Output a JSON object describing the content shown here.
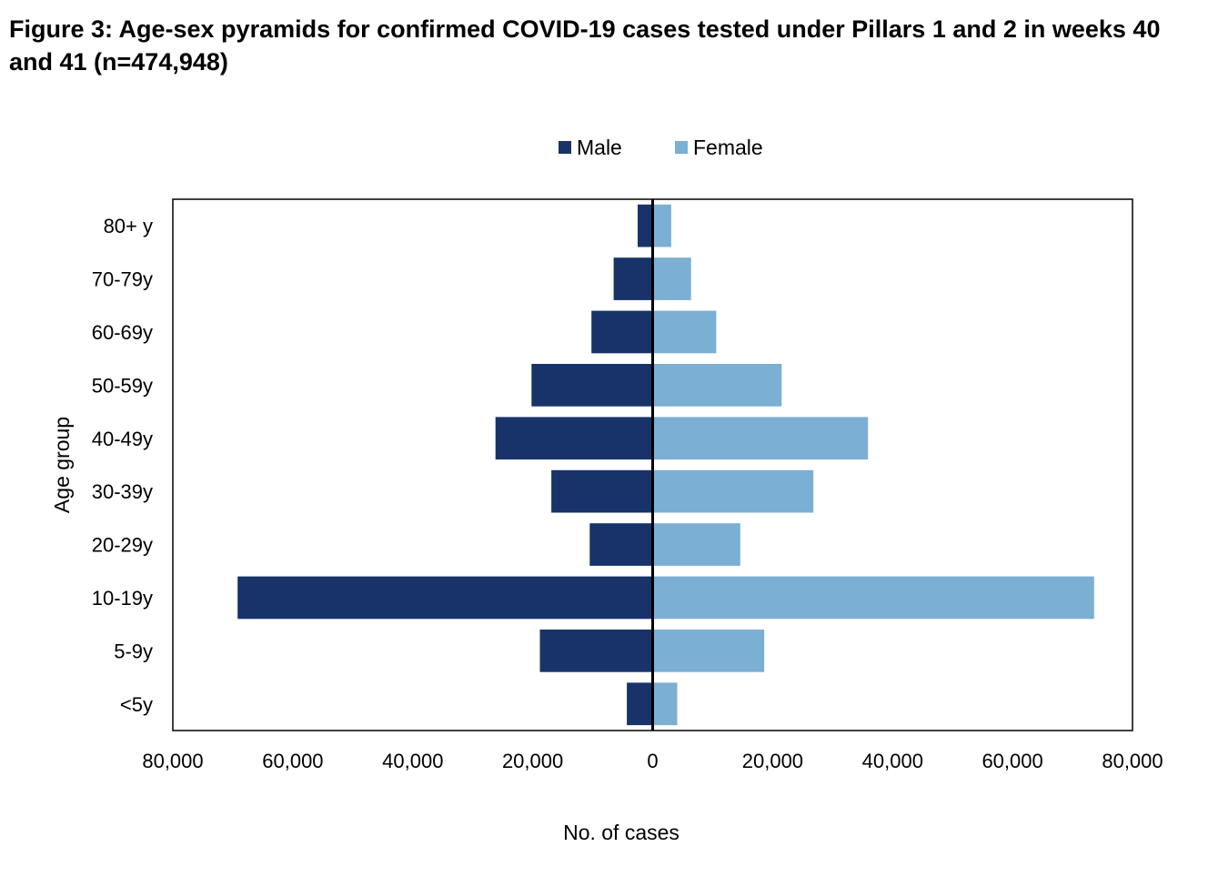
{
  "figure": {
    "title": "Figure 3: Age-sex pyramids for confirmed COVID-19 cases tested under Pillars 1 and 2 in weeks 40 and 41 (n=474,948)"
  },
  "chart_data": {
    "type": "bar",
    "orientation": "horizontal",
    "layout": "population-pyramid",
    "categories": [
      "80+ y",
      "70-79y",
      "60-69y",
      "50-59y",
      "40-49y",
      "30-39y",
      "20-29y",
      "10-19y",
      "5-9y",
      "<5y"
    ],
    "series": [
      {
        "name": "Male",
        "color": "#17336a",
        "side": "left",
        "values": [
          2500,
          6500,
          10200,
          20200,
          26200,
          16900,
          10500,
          69200,
          18800,
          4300
        ]
      },
      {
        "name": "Female",
        "color": "#7bafd4",
        "side": "right",
        "values": [
          3100,
          6400,
          10600,
          21500,
          35900,
          26800,
          14600,
          73600,
          18600,
          4100
        ]
      }
    ],
    "xlabel": "No. of cases",
    "ylabel": "Age group",
    "xlim": [
      -80000,
      80000
    ],
    "xticks": [
      -80000,
      -60000,
      -40000,
      -20000,
      0,
      20000,
      40000,
      60000,
      80000
    ],
    "xtick_labels": [
      "80,000",
      "60,000",
      "40,000",
      "20,000",
      "0",
      "20,000",
      "40,000",
      "60,000",
      "80,000"
    ],
    "grid": false,
    "legend_position": "top-center",
    "zero_line_color": "#000000"
  }
}
